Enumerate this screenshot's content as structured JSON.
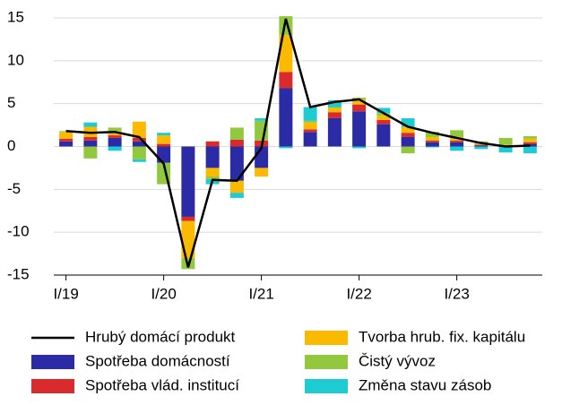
{
  "chart_data": {
    "type": "stacked-bar-line",
    "categories": [
      "I/19",
      null,
      null,
      null,
      "I/20",
      null,
      null,
      null,
      "I/21",
      null,
      null,
      null,
      "I/22",
      null,
      null,
      null,
      "I/23",
      null,
      null,
      null
    ],
    "series": [
      {
        "name": "Spotřeba domácností",
        "color": "#2b2ba6",
        "values": [
          0.6,
          0.7,
          1.0,
          0.6,
          -1.9,
          -8.2,
          -2.5,
          -4.0,
          -2.5,
          6.8,
          1.7,
          3.3,
          4.1,
          2.6,
          1.1,
          0.5,
          0.5,
          0.1,
          0.0,
          0.3
        ]
      },
      {
        "name": "Spotřeba vlád. institucí",
        "color": "#d92b2b",
        "values": [
          0.3,
          0.4,
          0.3,
          0.4,
          0.3,
          -0.5,
          0.6,
          0.8,
          0.7,
          1.9,
          0.3,
          0.7,
          0.8,
          0.5,
          0.5,
          0.2,
          0.2,
          0.1,
          0.1,
          0.2
        ]
      },
      {
        "name": "Tvorba hrub. fix. kapitálu",
        "color": "#fbb900",
        "values": [
          0.8,
          1.2,
          0.5,
          1.9,
          1.0,
          -4.3,
          -1.0,
          -1.4,
          -1.0,
          4.3,
          0.8,
          0.5,
          0.6,
          0.5,
          0.7,
          0.4,
          0.4,
          0.1,
          0.1,
          0.4
        ]
      },
      {
        "name": "Čistý vývoz",
        "color": "#92c83e",
        "values": [
          0.1,
          -1.4,
          0.4,
          -1.5,
          -2.5,
          -1.3,
          -0.3,
          1.4,
          2.3,
          2.2,
          0.2,
          0.1,
          0.2,
          0.3,
          -0.8,
          0.6,
          0.8,
          0.3,
          0.8,
          0.3
        ]
      },
      {
        "name": "Změna stavu zásob",
        "color": "#1ecbd3",
        "values": [
          0.0,
          0.5,
          -0.5,
          -0.3,
          0.3,
          0.0,
          -0.6,
          -0.6,
          0.3,
          -0.2,
          1.6,
          0.8,
          -0.2,
          0.6,
          1.0,
          -0.1,
          -0.5,
          -0.3,
          -0.7,
          -0.8
        ]
      }
    ],
    "line": {
      "name": "Hrubý domácí produkt",
      "color": "#000000",
      "values": [
        1.8,
        1.6,
        1.7,
        1.1,
        -2.0,
        -14.1,
        -3.9,
        -4.0,
        -0.2,
        14.9,
        4.6,
        5.2,
        5.5,
        3.9,
        2.3,
        1.6,
        1.0,
        0.4,
        0.0,
        0.1
      ]
    },
    "ylim": [
      -15,
      15
    ],
    "yticks": [
      -15,
      -10,
      -5,
      0,
      5,
      10,
      15
    ],
    "grid": true
  }
}
